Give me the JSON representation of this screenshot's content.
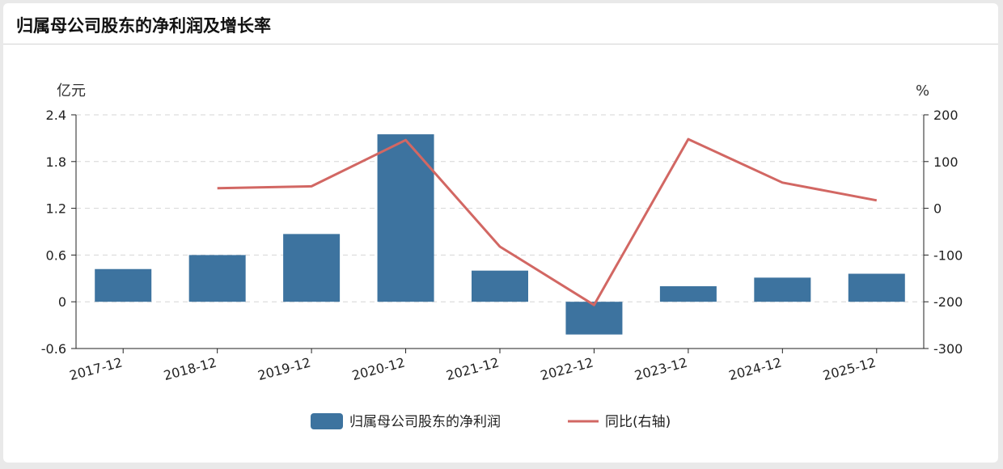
{
  "panel": {
    "title": "归属母公司股东的净利润及增长率"
  },
  "chart_data": {
    "type": "bar",
    "categories": [
      "2017-12",
      "2018-12",
      "2019-12",
      "2020-12",
      "2021-12",
      "2022-12",
      "2023-12",
      "2024-12",
      "2025-12"
    ],
    "series": [
      {
        "name": "归属母公司股东的净利润",
        "type": "bar",
        "axis": "left",
        "color": "#3d739f",
        "values": [
          0.42,
          0.6,
          0.87,
          2.15,
          0.4,
          -0.42,
          0.2,
          0.31,
          0.36
        ]
      },
      {
        "name": "同比(右轴)",
        "type": "line",
        "axis": "right",
        "color": "#d26763",
        "values": [
          null,
          43,
          47,
          146,
          -82,
          -207,
          148,
          55,
          17
        ]
      }
    ],
    "left_axis": {
      "unit": "亿元",
      "min": -0.6,
      "max": 2.4,
      "ticks": [
        "2.4",
        "1.8",
        "1.2",
        "0.6",
        "0",
        "-0.6"
      ]
    },
    "right_axis": {
      "unit": "%",
      "min": -300,
      "max": 200,
      "ticks": [
        "200",
        "100",
        "0",
        "-100",
        "-200",
        "-300"
      ]
    },
    "grid": true,
    "legend_position": "bottom-center"
  }
}
